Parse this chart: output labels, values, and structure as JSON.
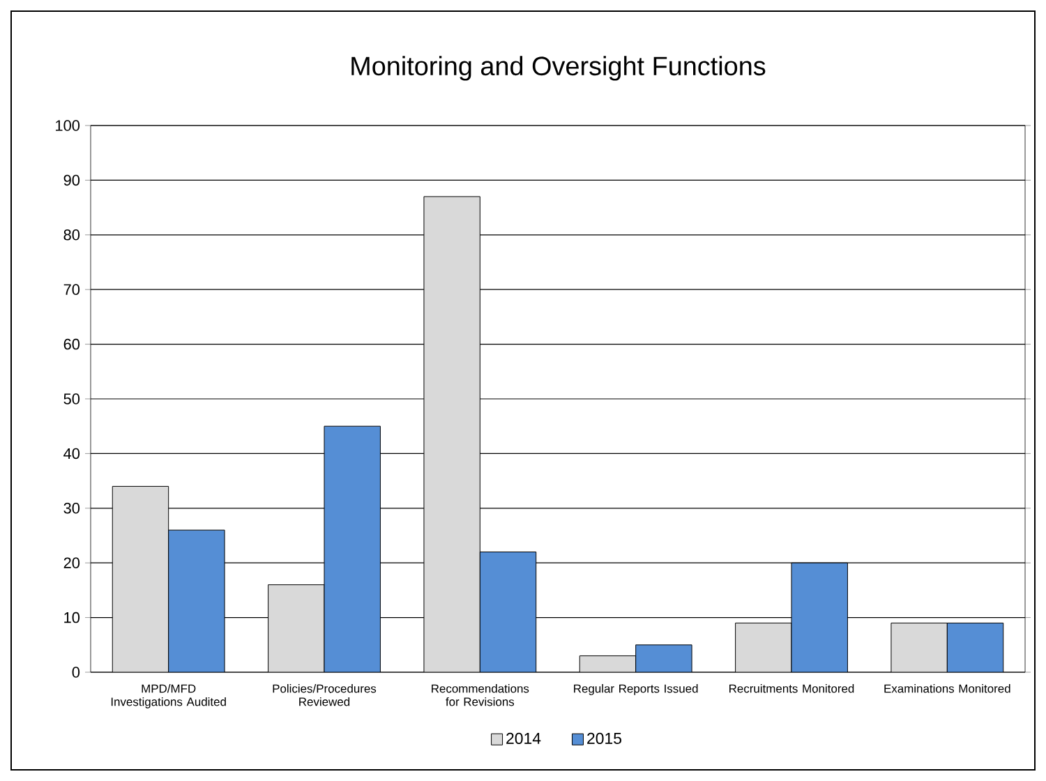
{
  "chart_data": {
    "type": "bar",
    "title": "Monitoring and Oversight Functions",
    "categories": [
      "MPD/MFD Investigations Audited",
      "Policies/Procedures Reviewed",
      "Recommendations for Revisions",
      "Regular Reports Issued",
      "Recruitments Monitored",
      "Examinations Monitored"
    ],
    "series": [
      {
        "name": "2014",
        "color": "#d9d9d9",
        "values": [
          34,
          16,
          87,
          3,
          9,
          9
        ]
      },
      {
        "name": "2015",
        "color": "#558ed5",
        "values": [
          26,
          45,
          22,
          5,
          20,
          9
        ]
      }
    ],
    "ylim": [
      0,
      100
    ],
    "yticks": [
      0,
      10,
      20,
      30,
      40,
      50,
      60,
      70,
      80,
      90,
      100
    ],
    "grid": "y",
    "legend": "bottom"
  }
}
